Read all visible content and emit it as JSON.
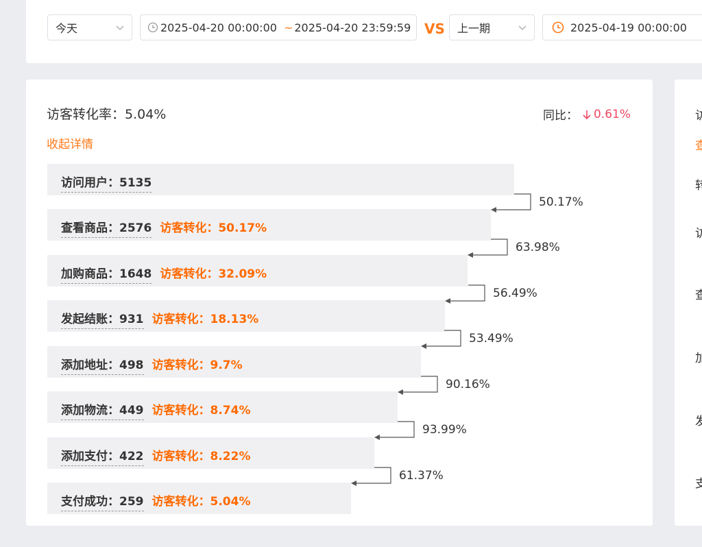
{
  "filter": {
    "period_select": "今天",
    "date_range_start": "2025-04-20 00:00:00",
    "date_range_sep": "~",
    "date_range_end": "2025-04-20 23:59:59",
    "vs_label": "VS",
    "compare_select": "上一期",
    "compare_date": "2025-04-19 00:00:00"
  },
  "funnel": {
    "title": "访客转化率：5.04%",
    "yoy_label": "同比：",
    "yoy_value": "0.61%",
    "toggle_label": "收起详情",
    "conv_label": "访客转化：",
    "steps": [
      {
        "name": "访问用户：",
        "count": "5135",
        "conv": ""
      },
      {
        "name": "查看商品：",
        "count": "2576",
        "conv": "50.17%"
      },
      {
        "name": "加购商品：",
        "count": "1648",
        "conv": "32.09%"
      },
      {
        "name": "发起结账：",
        "count": "931",
        "conv": "18.13%"
      },
      {
        "name": "添加地址：",
        "count": "498",
        "conv": "9.7%"
      },
      {
        "name": "添加物流：",
        "count": "449",
        "conv": "8.74%"
      },
      {
        "name": "添加支付：",
        "count": "422",
        "conv": "8.22%"
      },
      {
        "name": "支付成功：",
        "count": "259",
        "conv": "5.04%"
      }
    ],
    "step_rates": [
      "50.17%",
      "63.98%",
      "56.49%",
      "53.49%",
      "90.16%",
      "93.99%",
      "61.37%"
    ]
  },
  "side_panel": {
    "chars": [
      "访",
      "查",
      "转",
      "访",
      "查",
      "加",
      "发",
      "支"
    ]
  },
  "colors": {
    "accent": "#ff7a1a",
    "down": "#f04864",
    "bar": "#f0f0f3"
  }
}
